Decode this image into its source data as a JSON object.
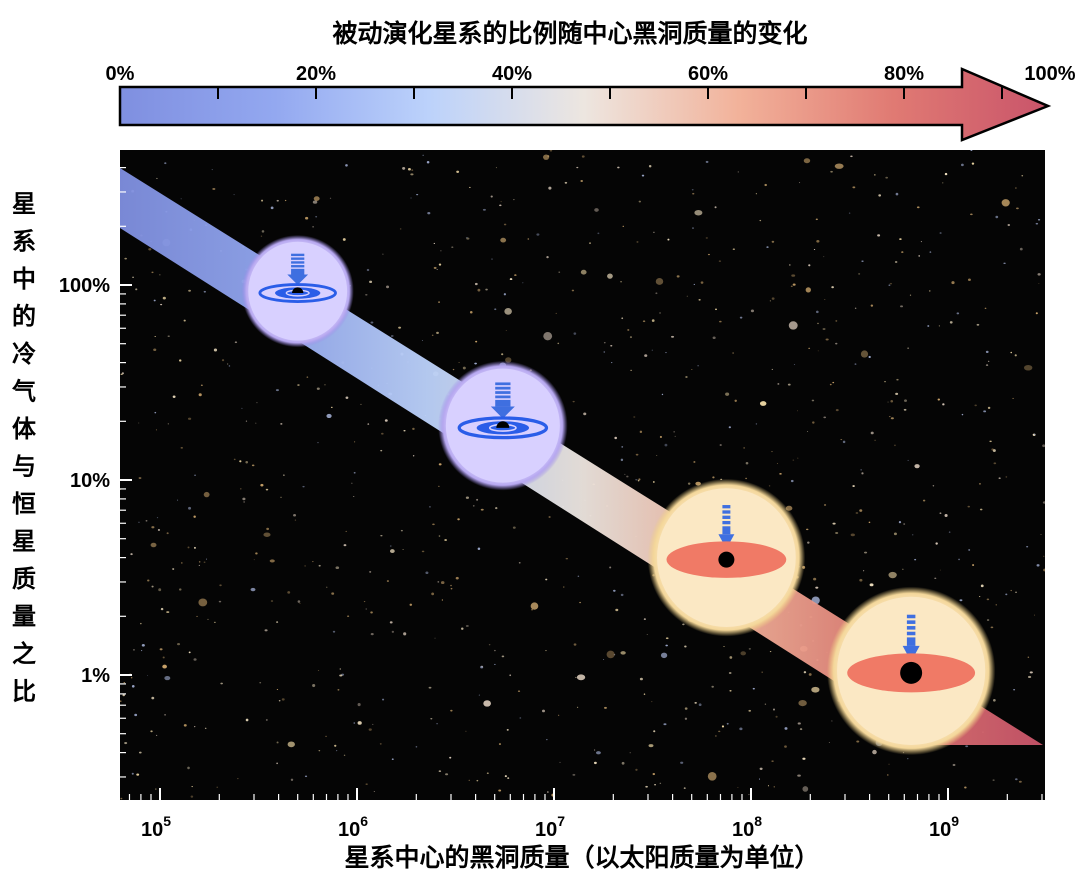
{
  "title": "被动演化星系的比例随中心黑洞质量的变化",
  "colorbar": {
    "labels": [
      "0%",
      "20%",
      "40%",
      "60%",
      "80%",
      "100%"
    ],
    "colors": [
      "#7f8fe0",
      "#93a8f0",
      "#bcd2fb",
      "#ede6e0",
      "#f2b29a",
      "#e07a73",
      "#c9546a"
    ]
  },
  "x_axis": {
    "label": "星系中心的黑洞质量（以太阳质量为单位）",
    "scale": "log",
    "ticks": [
      {
        "base": "10",
        "exp": "5"
      },
      {
        "base": "10",
        "exp": "6"
      },
      {
        "base": "10",
        "exp": "7"
      },
      {
        "base": "10",
        "exp": "8"
      },
      {
        "base": "10",
        "exp": "9"
      }
    ]
  },
  "y_axis": {
    "label": "星系中的冷气体与恒星质量之比",
    "scale": "log",
    "ticks": [
      "100%",
      "10%",
      "1%"
    ]
  },
  "stages": [
    {
      "type": "active-accretion",
      "glow": "#d8d0ff",
      "mass": 500000.0,
      "gas_ratio": 0.93
    },
    {
      "type": "active-accretion",
      "glow": "#d8d0ff",
      "mass": 5500000.0,
      "gas_ratio": 0.19
    },
    {
      "type": "quiescent",
      "glow": "#fbe8c4",
      "mass": 75000000.0,
      "gas_ratio": 0.04
    },
    {
      "type": "quiescent",
      "glow": "#fbe8c4",
      "mass": 650000000.0,
      "gas_ratio": 0.0105
    }
  ],
  "background": "deep-field-galaxies"
}
